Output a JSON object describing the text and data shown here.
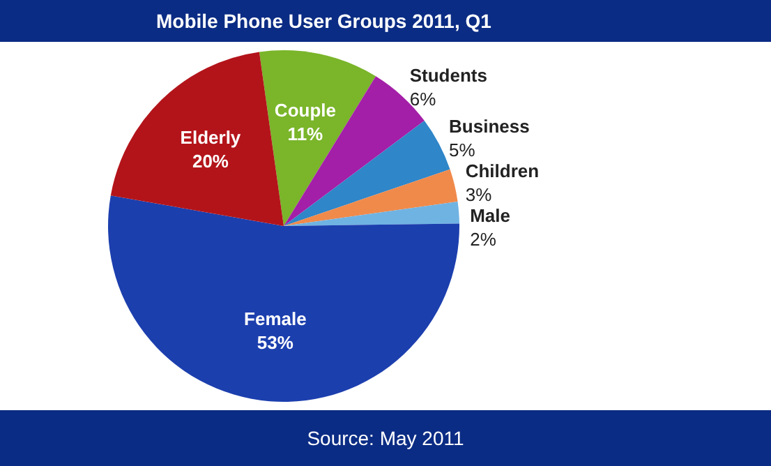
{
  "chart_data": {
    "type": "pie",
    "title": "Mobile Phone User Groups 2011, Q1",
    "categories": [
      "Couple",
      "Students",
      "Business",
      "Children",
      "Male",
      "Female",
      "Elderly"
    ],
    "values": [
      11,
      6,
      5,
      3,
      2,
      53,
      20
    ],
    "value_labels": [
      "11%",
      "6%",
      "5%",
      "3%",
      "2%",
      "53%",
      "20%"
    ],
    "colors": [
      "#7ab52a",
      "#a41fa8",
      "#2f86c8",
      "#f08a4b",
      "#6fb3e3",
      "#1c3fae",
      "#b3141a"
    ],
    "legend": false,
    "annotations": [
      "Source: May 2011"
    ]
  }
}
